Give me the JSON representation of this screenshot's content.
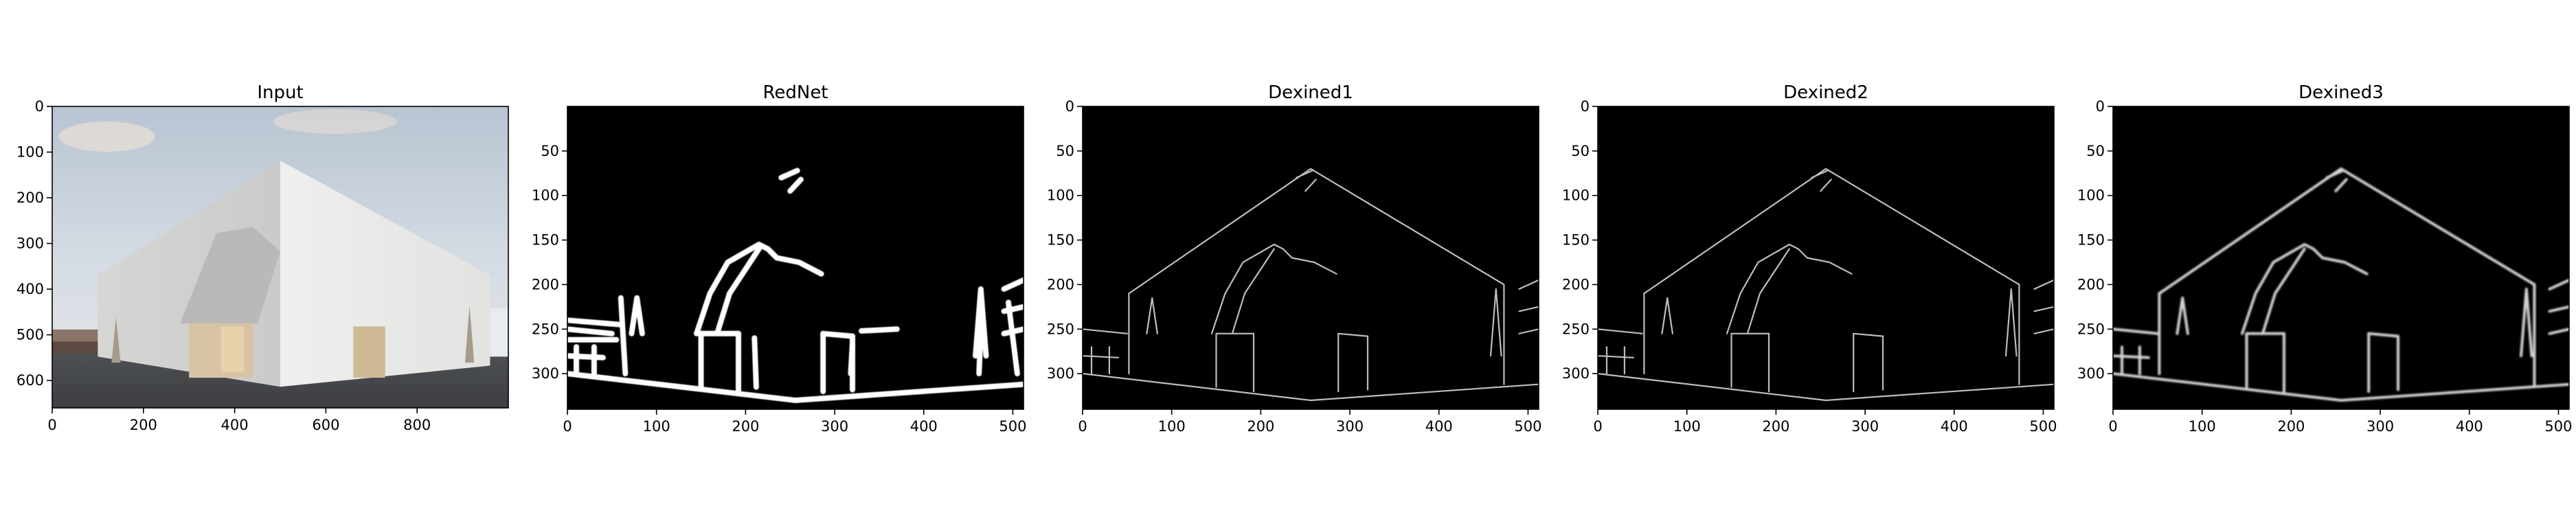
{
  "figure": {
    "panels": [
      {
        "title": "Input",
        "kind": "photo",
        "xlim": [
          0,
          1000
        ],
        "ylim": [
          0,
          660
        ],
        "xticks": [
          0,
          200,
          400,
          600,
          800
        ],
        "yticks": [
          0,
          100,
          200,
          300,
          400,
          500,
          600
        ]
      },
      {
        "title": "RedNet",
        "kind": "edges-thick",
        "xlim": [
          0,
          512
        ],
        "ylim": [
          0,
          340
        ],
        "xticks": [
          0,
          100,
          200,
          300,
          400,
          500
        ],
        "yticks": [
          50,
          100,
          150,
          200,
          250,
          300
        ]
      },
      {
        "title": "Dexined1",
        "kind": "edges-thin",
        "xlim": [
          0,
          512
        ],
        "ylim": [
          0,
          340
        ],
        "xticks": [
          0,
          100,
          200,
          300,
          400,
          500
        ],
        "yticks": [
          0,
          50,
          100,
          150,
          200,
          250,
          300
        ]
      },
      {
        "title": "Dexined2",
        "kind": "edges-thin",
        "xlim": [
          0,
          512
        ],
        "ylim": [
          0,
          340
        ],
        "xticks": [
          0,
          100,
          200,
          300,
          400,
          500
        ],
        "yticks": [
          0,
          50,
          100,
          150,
          200,
          250,
          300
        ]
      },
      {
        "title": "Dexined3",
        "kind": "edges-medium",
        "xlim": [
          0,
          512
        ],
        "ylim": [
          0,
          340
        ],
        "xticks": [
          0,
          100,
          200,
          300,
          400,
          500
        ],
        "yticks": [
          0,
          50,
          100,
          150,
          200,
          250,
          300
        ]
      }
    ]
  }
}
